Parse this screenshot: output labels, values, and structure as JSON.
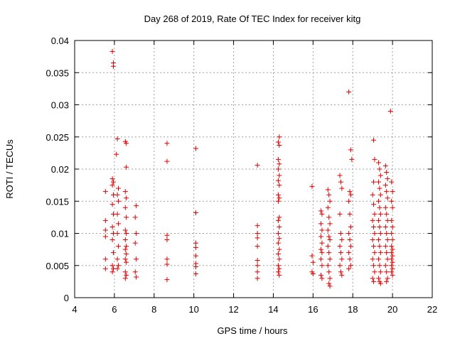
{
  "chart_data": {
    "type": "scatter",
    "title": "Day 268 of 2019, Rate Of TEC Index for receiver kitg",
    "xlabel": "GPS time / hours",
    "ylabel": "ROTI / TECUs",
    "xlim": [
      4,
      22
    ],
    "ylim": [
      0,
      0.04
    ],
    "xticks": [
      4,
      6,
      8,
      10,
      12,
      14,
      16,
      18,
      20,
      22
    ],
    "xtick_labels": [
      "4",
      "6",
      "8",
      "10",
      "12",
      "14",
      "16",
      "18",
      "20",
      "22"
    ],
    "yticks": [
      0,
      0.005,
      0.01,
      0.015,
      0.02,
      0.025,
      0.03,
      0.035,
      0.04
    ],
    "ytick_labels": [
      "0",
      "0.005",
      "0.01",
      "0.015",
      "0.02",
      "0.025",
      "0.03",
      "0.035",
      "0.04"
    ],
    "grid": true,
    "marker": "+",
    "series": [
      {
        "name": "ROTI",
        "color": "#e00000",
        "points": [
          [
            5.55,
            0.0165
          ],
          [
            5.55,
            0.012
          ],
          [
            5.55,
            0.0105
          ],
          [
            5.55,
            0.0095
          ],
          [
            5.55,
            0.006
          ],
          [
            5.55,
            0.0045
          ],
          [
            5.9,
            0.0383
          ],
          [
            5.95,
            0.0365
          ],
          [
            5.95,
            0.036
          ],
          [
            5.9,
            0.0185
          ],
          [
            5.95,
            0.018
          ],
          [
            5.9,
            0.0175
          ],
          [
            5.95,
            0.016
          ],
          [
            5.9,
            0.0145
          ],
          [
            5.95,
            0.013
          ],
          [
            5.9,
            0.011
          ],
          [
            5.95,
            0.01
          ],
          [
            5.9,
            0.009
          ],
          [
            5.95,
            0.007
          ],
          [
            5.9,
            0.005
          ],
          [
            5.95,
            0.0045
          ],
          [
            5.9,
            0.004
          ],
          [
            6.15,
            0.0247
          ],
          [
            6.1,
            0.0223
          ],
          [
            6.2,
            0.017
          ],
          [
            6.15,
            0.016
          ],
          [
            6.2,
            0.015
          ],
          [
            6.15,
            0.013
          ],
          [
            6.2,
            0.0115
          ],
          [
            6.15,
            0.01
          ],
          [
            6.2,
            0.008
          ],
          [
            6.15,
            0.006
          ],
          [
            6.2,
            0.005
          ],
          [
            6.15,
            0.0045
          ],
          [
            6.55,
            0.0243
          ],
          [
            6.6,
            0.024
          ],
          [
            6.6,
            0.0203
          ],
          [
            6.55,
            0.0165
          ],
          [
            6.6,
            0.0155
          ],
          [
            6.55,
            0.014
          ],
          [
            6.6,
            0.0125
          ],
          [
            6.55,
            0.0105
          ],
          [
            6.6,
            0.01
          ],
          [
            6.55,
            0.009
          ],
          [
            6.6,
            0.008
          ],
          [
            6.55,
            0.0075
          ],
          [
            6.6,
            0.0068
          ],
          [
            6.55,
            0.006
          ],
          [
            6.6,
            0.0055
          ],
          [
            6.55,
            0.004
          ],
          [
            6.6,
            0.0035
          ],
          [
            6.55,
            0.003
          ],
          [
            7.1,
            0.0143
          ],
          [
            7.05,
            0.0125
          ],
          [
            7.1,
            0.01
          ],
          [
            7.05,
            0.0085
          ],
          [
            7.1,
            0.006
          ],
          [
            7.05,
            0.004
          ],
          [
            7.1,
            0.0032
          ],
          [
            8.65,
            0.024
          ],
          [
            8.65,
            0.0212
          ],
          [
            8.65,
            0.0097
          ],
          [
            8.65,
            0.009
          ],
          [
            8.65,
            0.006
          ],
          [
            8.65,
            0.0052
          ],
          [
            8.65,
            0.0028
          ],
          [
            10.1,
            0.0232
          ],
          [
            10.1,
            0.0132
          ],
          [
            10.1,
            0.0085
          ],
          [
            10.1,
            0.0078
          ],
          [
            10.1,
            0.0065
          ],
          [
            10.1,
            0.0053
          ],
          [
            10.1,
            0.0048
          ],
          [
            10.1,
            0.0037
          ],
          [
            13.2,
            0.0206
          ],
          [
            13.2,
            0.0112
          ],
          [
            13.2,
            0.01
          ],
          [
            13.2,
            0.0093
          ],
          [
            13.2,
            0.008
          ],
          [
            13.2,
            0.0058
          ],
          [
            13.2,
            0.005
          ],
          [
            13.2,
            0.004
          ],
          [
            13.2,
            0.003
          ],
          [
            14.3,
            0.025
          ],
          [
            14.25,
            0.0242
          ],
          [
            14.3,
            0.0237
          ],
          [
            14.25,
            0.0215
          ],
          [
            14.3,
            0.0208
          ],
          [
            14.25,
            0.02
          ],
          [
            14.3,
            0.019
          ],
          [
            14.25,
            0.0182
          ],
          [
            14.3,
            0.0175
          ],
          [
            14.25,
            0.016
          ],
          [
            14.3,
            0.0155
          ],
          [
            14.25,
            0.015
          ],
          [
            14.3,
            0.0125
          ],
          [
            14.25,
            0.012
          ],
          [
            14.3,
            0.011
          ],
          [
            14.25,
            0.01
          ],
          [
            14.3,
            0.0092
          ],
          [
            14.25,
            0.0085
          ],
          [
            14.3,
            0.0075
          ],
          [
            14.25,
            0.0068
          ],
          [
            14.3,
            0.006
          ],
          [
            14.25,
            0.005
          ],
          [
            14.3,
            0.0045
          ],
          [
            14.25,
            0.004
          ],
          [
            14.3,
            0.0035
          ],
          [
            15.95,
            0.0173
          ],
          [
            15.95,
            0.0065
          ],
          [
            16.0,
            0.0055
          ],
          [
            15.95,
            0.004
          ],
          [
            16.0,
            0.0037
          ],
          [
            16.4,
            0.0135
          ],
          [
            16.45,
            0.013
          ],
          [
            16.4,
            0.0115
          ],
          [
            16.45,
            0.0105
          ],
          [
            16.4,
            0.0095
          ],
          [
            16.45,
            0.0085
          ],
          [
            16.4,
            0.0075
          ],
          [
            16.45,
            0.007
          ],
          [
            16.4,
            0.006
          ],
          [
            16.45,
            0.005
          ],
          [
            16.4,
            0.0035
          ],
          [
            16.45,
            0.003
          ],
          [
            16.75,
            0.0168
          ],
          [
            16.8,
            0.016
          ],
          [
            16.85,
            0.015
          ],
          [
            16.75,
            0.014
          ],
          [
            16.8,
            0.0125
          ],
          [
            16.85,
            0.0115
          ],
          [
            16.75,
            0.0105
          ],
          [
            16.8,
            0.0095
          ],
          [
            16.85,
            0.009
          ],
          [
            16.75,
            0.008
          ],
          [
            16.8,
            0.007
          ],
          [
            16.85,
            0.006
          ],
          [
            16.75,
            0.005
          ],
          [
            16.8,
            0.004
          ],
          [
            16.85,
            0.003
          ],
          [
            16.8,
            0.0022
          ],
          [
            16.85,
            0.0018
          ],
          [
            17.35,
            0.019
          ],
          [
            17.4,
            0.018
          ],
          [
            17.45,
            0.017
          ],
          [
            17.35,
            0.013
          ],
          [
            17.4,
            0.01
          ],
          [
            17.45,
            0.009
          ],
          [
            17.35,
            0.008
          ],
          [
            17.4,
            0.007
          ],
          [
            17.45,
            0.006
          ],
          [
            17.35,
            0.005
          ],
          [
            17.4,
            0.004
          ],
          [
            17.45,
            0.0035
          ],
          [
            17.8,
            0.032
          ],
          [
            17.9,
            0.023
          ],
          [
            17.95,
            0.0215
          ],
          [
            17.85,
            0.0165
          ],
          [
            17.9,
            0.016
          ],
          [
            17.8,
            0.015
          ],
          [
            17.85,
            0.013
          ],
          [
            17.9,
            0.011
          ],
          [
            17.8,
            0.01
          ],
          [
            17.85,
            0.009
          ],
          [
            17.9,
            0.008
          ],
          [
            17.8,
            0.007
          ],
          [
            17.85,
            0.006
          ],
          [
            17.9,
            0.005
          ],
          [
            17.8,
            0.0045
          ],
          [
            19.05,
            0.0245
          ],
          [
            19.1,
            0.0215
          ],
          [
            19.05,
            0.018
          ],
          [
            19.0,
            0.016
          ],
          [
            19.05,
            0.0145
          ],
          [
            19.1,
            0.013
          ],
          [
            19.0,
            0.012
          ],
          [
            19.05,
            0.011
          ],
          [
            19.1,
            0.01
          ],
          [
            19.0,
            0.009
          ],
          [
            19.05,
            0.008
          ],
          [
            19.1,
            0.007
          ],
          [
            19.0,
            0.006
          ],
          [
            19.05,
            0.005
          ],
          [
            19.1,
            0.004
          ],
          [
            19.0,
            0.003
          ],
          [
            19.05,
            0.0025
          ],
          [
            19.3,
            0.021
          ],
          [
            19.35,
            0.02
          ],
          [
            19.4,
            0.019
          ],
          [
            19.3,
            0.018
          ],
          [
            19.35,
            0.017
          ],
          [
            19.4,
            0.016
          ],
          [
            19.3,
            0.015
          ],
          [
            19.35,
            0.014
          ],
          [
            19.4,
            0.013
          ],
          [
            19.3,
            0.012
          ],
          [
            19.35,
            0.011
          ],
          [
            19.4,
            0.01
          ],
          [
            19.3,
            0.009
          ],
          [
            19.35,
            0.008
          ],
          [
            19.4,
            0.007
          ],
          [
            19.3,
            0.006
          ],
          [
            19.35,
            0.005
          ],
          [
            19.4,
            0.004
          ],
          [
            19.3,
            0.003
          ],
          [
            19.35,
            0.0025
          ],
          [
            19.4,
            0.0022
          ],
          [
            19.65,
            0.0205
          ],
          [
            19.7,
            0.0195
          ],
          [
            19.75,
            0.0185
          ],
          [
            19.65,
            0.0175
          ],
          [
            19.7,
            0.0165
          ],
          [
            19.75,
            0.0155
          ],
          [
            19.65,
            0.014
          ],
          [
            19.7,
            0.013
          ],
          [
            19.75,
            0.012
          ],
          [
            19.65,
            0.011
          ],
          [
            19.7,
            0.01
          ],
          [
            19.75,
            0.009
          ],
          [
            19.65,
            0.008
          ],
          [
            19.7,
            0.007
          ],
          [
            19.75,
            0.006
          ],
          [
            19.65,
            0.005
          ],
          [
            19.7,
            0.004
          ],
          [
            19.75,
            0.003
          ],
          [
            19.7,
            0.0025
          ],
          [
            19.9,
            0.029
          ],
          [
            19.95,
            0.018
          ],
          [
            20.0,
            0.0165
          ],
          [
            19.95,
            0.015
          ],
          [
            20.0,
            0.014
          ],
          [
            19.95,
            0.012
          ],
          [
            20.0,
            0.011
          ],
          [
            19.95,
            0.01
          ],
          [
            20.0,
            0.009
          ],
          [
            19.95,
            0.008
          ],
          [
            20.0,
            0.0075
          ],
          [
            19.95,
            0.007
          ],
          [
            20.0,
            0.0065
          ],
          [
            19.95,
            0.006
          ],
          [
            20.0,
            0.0055
          ],
          [
            19.95,
            0.005
          ],
          [
            20.0,
            0.0045
          ],
          [
            19.95,
            0.004
          ],
          [
            20.0,
            0.0035
          ]
        ]
      }
    ]
  }
}
